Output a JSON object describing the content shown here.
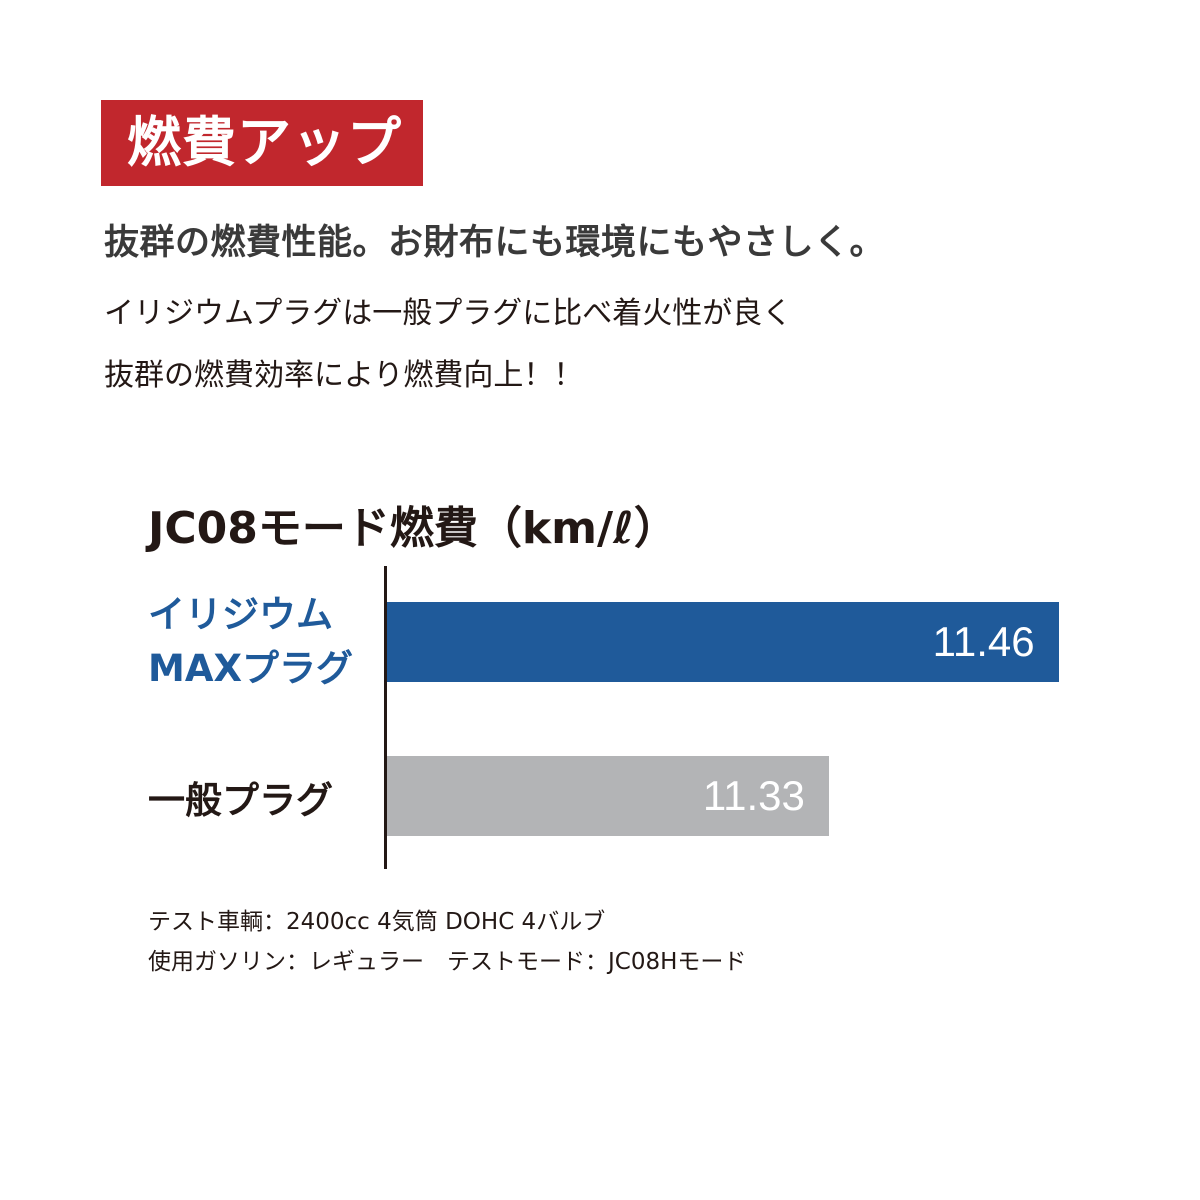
{
  "badge": "燃費アップ",
  "headline": "抜群の燃費性能。お財布にも環境にもやさしく。",
  "body_lines": [
    "イリジウムプラグは一般プラグに比べ着火性が良く",
    "抜群の燃費効率により燃費向上！！"
  ],
  "colors": {
    "badge": "#c1272d",
    "iridium": "#1f5a9a",
    "normal": "#b3b4b6"
  },
  "chart_data": {
    "type": "bar",
    "orientation": "horizontal",
    "title": "JC08モード燃費（km/ℓ）",
    "categories": [
      "イリジウム MAXプラグ",
      "一般プラグ"
    ],
    "category_lines": [
      [
        "イリジウム",
        "MAXプラグ"
      ],
      [
        "一般プラグ"
      ]
    ],
    "values": [
      11.46,
      11.33
    ],
    "value_labels": [
      "11.46",
      "11.33"
    ],
    "xlim": [
      11.08,
      11.48
    ],
    "grid": false
  },
  "notes": [
    "テスト車輌：2400cc 4気筒 DOHC 4バルブ",
    "使用ガソリン：レギュラー　テストモード：JC08Hモード"
  ]
}
